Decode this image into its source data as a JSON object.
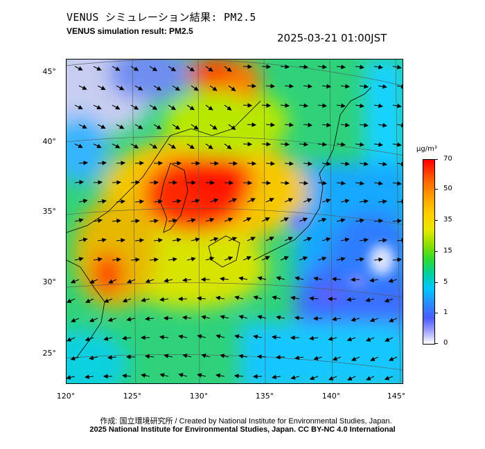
{
  "header": {
    "title_jp": "VENUS シミュレーション結果: PM2.5",
    "title_en": "VENUS simulation result: PM2.5",
    "timestamp": "2025-03-21 01:00JST"
  },
  "map": {
    "lat_labels": [
      "45°",
      "40°",
      "35°",
      "30°",
      "25°"
    ],
    "lon_labels": [
      "120°",
      "125°",
      "130°",
      "135°",
      "140°",
      "145°"
    ],
    "variable": "PM2.5",
    "overlay": "wind-vectors"
  },
  "colorbar": {
    "unit": "μg/m³",
    "ticks": [
      "70",
      "50",
      "35",
      "15",
      "5",
      "1",
      "0"
    ],
    "colors": [
      "#ff0000",
      "#ffb400",
      "#e8e800",
      "#2edb2e",
      "#00c8ff",
      "#4a5cff",
      "#ffffff"
    ]
  },
  "footer": {
    "credit_line1": "作成: 国立環境研究所 / Created by National Institute for Environmental Studies, Japan.",
    "credit_line2": "2025 National Institute for Environmental Studies, Japan. CC BY-NC 4.0 International"
  }
}
